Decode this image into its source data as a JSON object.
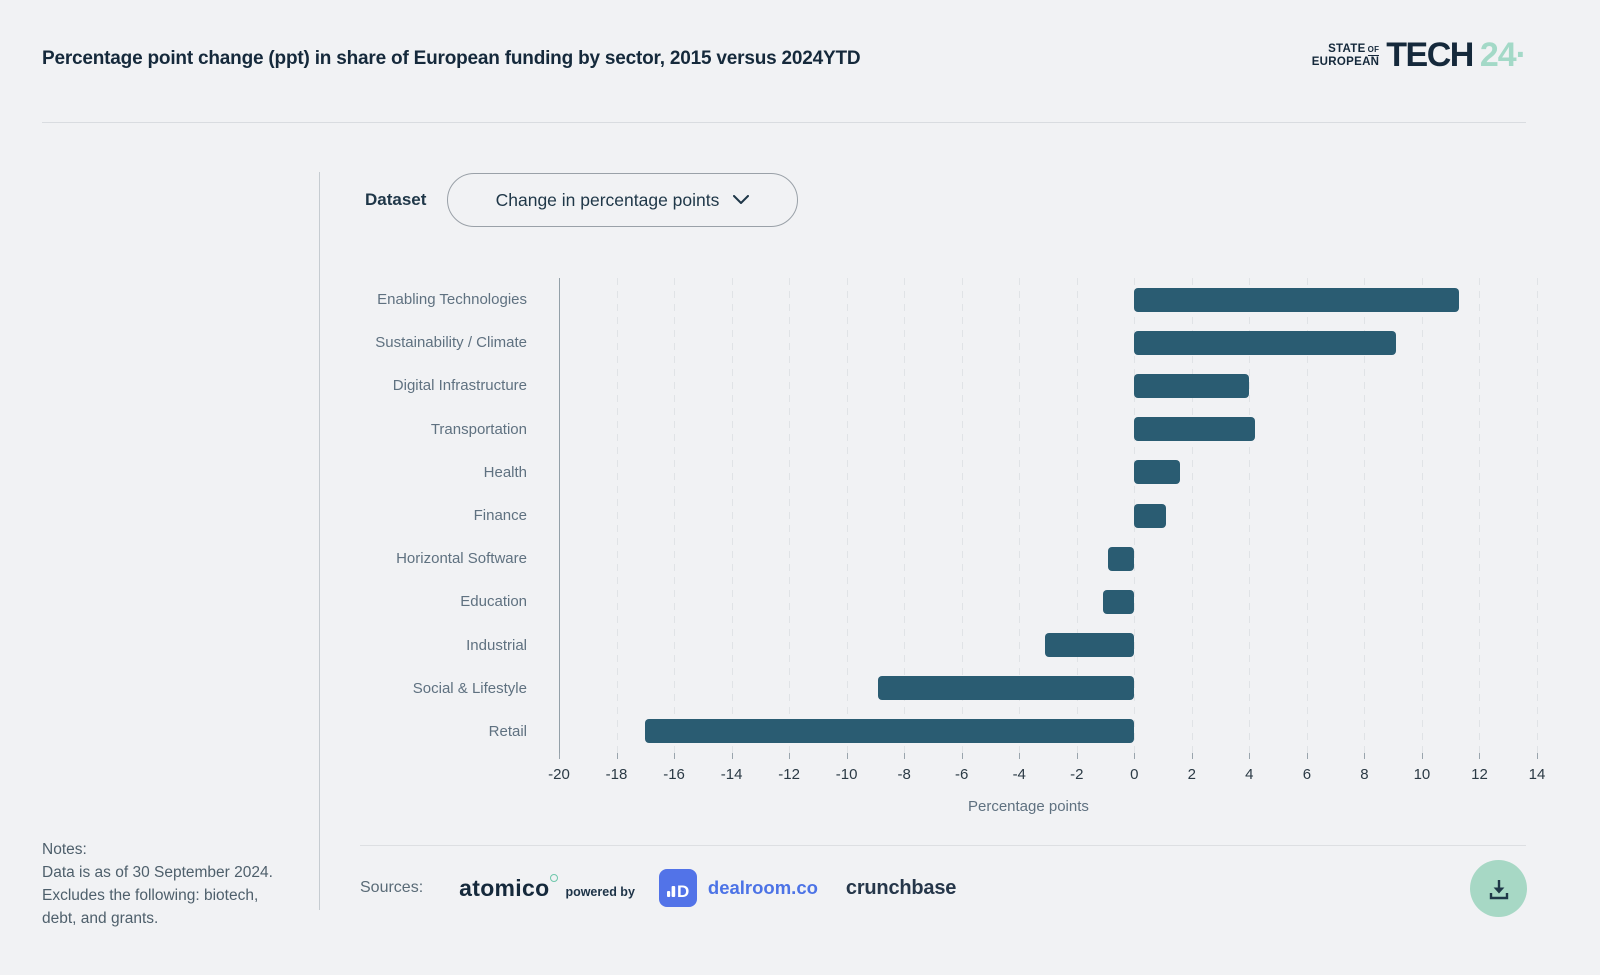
{
  "header": {
    "title": "Percentage point change (ppt) in share of European funding by sector, 2015 versus 2024YTD",
    "logo": {
      "state": "STATE",
      "of": "OF",
      "european": "EUROPEAN",
      "tech": "TECH",
      "year": "24",
      "dot": "·"
    }
  },
  "controls": {
    "dataset_label": "Dataset",
    "dataset_value": "Change in percentage points"
  },
  "chart_data": {
    "type": "bar",
    "orientation": "horizontal",
    "title": "Percentage point change (ppt) in share of European funding by sector, 2015 versus 2024YTD",
    "categories": [
      "Enabling Technologies",
      "Sustainability / Climate",
      "Digital Infrastructure",
      "Transportation",
      "Health",
      "Finance",
      "Horizontal Software",
      "Education",
      "Industrial",
      "Social & Lifestyle",
      "Retail"
    ],
    "values": [
      11.3,
      9.1,
      4.0,
      4.2,
      1.6,
      1.1,
      -0.9,
      -1.1,
      -3.1,
      -8.9,
      -17.0
    ],
    "xlabel": "Percentage points",
    "xlim": [
      -20,
      14
    ],
    "tick_step": 2,
    "grid": "dashed-vertical",
    "legend": "none",
    "bar_color": "#2a5c72"
  },
  "notes": {
    "heading": "Notes:",
    "lines": [
      "Data is as of 30 September 2024.",
      "Excludes the following: biotech,",
      "debt, and grants."
    ]
  },
  "sources": {
    "label": "Sources:",
    "atomico": "atomico",
    "powered_by": "powered by",
    "dealroom": "dealroom.co",
    "crunchbase": "crunchbase"
  },
  "colors": {
    "bar": "#2a5c72",
    "mint_accent": "#a3d9c7",
    "navy": "#15293b",
    "dealroom_blue": "#4c73e6"
  }
}
